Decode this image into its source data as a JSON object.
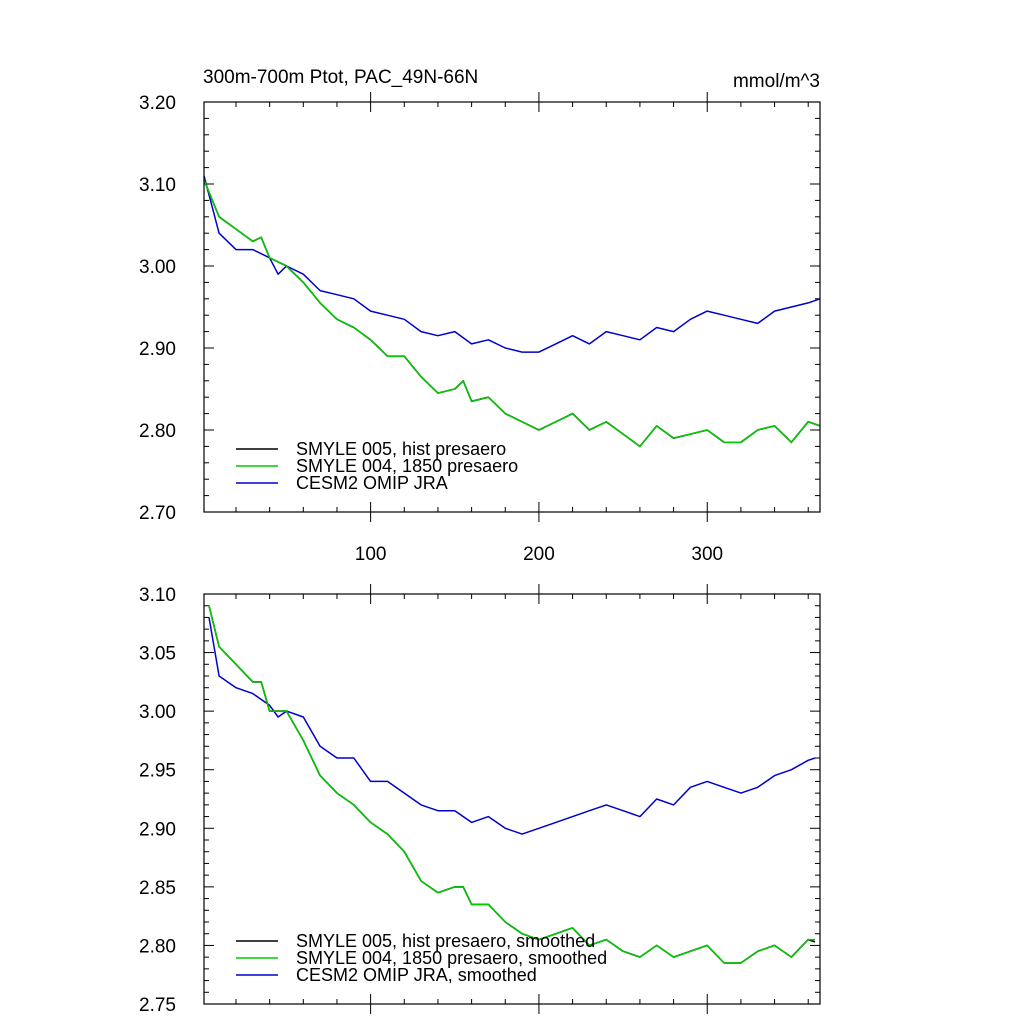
{
  "colors": {
    "hist": "#000000",
    "y1850": "#00cc00",
    "omip": "#0000cc"
  },
  "chart_data": [
    {
      "type": "line",
      "title": "300m-700m Ptot, PAC_49N-66N",
      "units": "mmol/m^3",
      "xlim": [
        1,
        367
      ],
      "ylim": [
        2.7,
        3.2
      ],
      "x_ticks": [
        100,
        200,
        300
      ],
      "y_ticks": [
        "2.70",
        "2.80",
        "2.90",
        "3.00",
        "3.10",
        "3.20"
      ],
      "legend": "bottom-left",
      "series": [
        {
          "name": "SMYLE 005, hist presaero",
          "x": [
            1,
            10,
            20,
            30,
            35,
            40,
            50,
            60,
            70,
            80,
            90,
            100,
            110,
            120,
            130,
            140,
            150,
            155,
            160,
            170,
            180,
            190,
            200,
            210,
            220,
            230,
            240,
            250,
            260,
            270,
            280,
            290,
            300,
            310,
            320,
            330,
            340,
            350,
            360,
            367
          ],
          "values": [
            3.105,
            3.06,
            3.045,
            3.03,
            3.035,
            3.01,
            3.0,
            2.98,
            2.955,
            2.935,
            2.925,
            2.91,
            2.89,
            2.89,
            2.865,
            2.845,
            2.85,
            2.86,
            2.835,
            2.84,
            2.82,
            2.81,
            2.8,
            2.81,
            2.82,
            2.8,
            2.81,
            2.795,
            2.78,
            2.805,
            2.79,
            2.795,
            2.8,
            2.785,
            2.785,
            2.8,
            2.805,
            2.785,
            2.81,
            2.805
          ]
        },
        {
          "name": "SMYLE 004, 1850 presaero",
          "x": [
            1,
            10,
            20,
            30,
            35,
            40,
            50,
            60,
            70,
            80,
            90,
            100,
            110,
            120,
            130,
            140,
            150,
            155,
            160,
            170,
            180,
            190,
            200,
            210,
            220,
            230,
            240,
            250,
            260,
            270,
            280,
            290,
            300,
            310,
            320,
            330,
            340,
            350,
            360,
            367
          ],
          "values": [
            3.105,
            3.06,
            3.045,
            3.03,
            3.035,
            3.01,
            3.0,
            2.98,
            2.955,
            2.935,
            2.925,
            2.91,
            2.89,
            2.89,
            2.865,
            2.845,
            2.85,
            2.86,
            2.835,
            2.84,
            2.82,
            2.81,
            2.8,
            2.81,
            2.82,
            2.8,
            2.81,
            2.795,
            2.78,
            2.805,
            2.79,
            2.795,
            2.8,
            2.785,
            2.785,
            2.8,
            2.805,
            2.785,
            2.81,
            2.805
          ]
        },
        {
          "name": "CESM2 OMIP JRA",
          "x": [
            1,
            10,
            20,
            30,
            40,
            45,
            50,
            60,
            70,
            80,
            90,
            100,
            110,
            120,
            130,
            140,
            150,
            160,
            170,
            180,
            190,
            200,
            210,
            220,
            230,
            240,
            250,
            260,
            270,
            280,
            290,
            300,
            310,
            320,
            330,
            340,
            350,
            360,
            367
          ],
          "values": [
            3.11,
            3.04,
            3.02,
            3.02,
            3.01,
            2.99,
            3.0,
            2.99,
            2.97,
            2.965,
            2.96,
            2.945,
            2.94,
            2.935,
            2.92,
            2.915,
            2.92,
            2.905,
            2.91,
            2.9,
            2.895,
            2.895,
            2.905,
            2.915,
            2.905,
            2.92,
            2.915,
            2.91,
            2.925,
            2.92,
            2.935,
            2.945,
            2.94,
            2.935,
            2.93,
            2.945,
            2.95,
            2.955,
            2.96
          ]
        }
      ]
    },
    {
      "type": "line",
      "title": "",
      "xlim": [
        1,
        367
      ],
      "ylim": [
        2.75,
        3.1
      ],
      "y_ticks": [
        "2.75",
        "2.80",
        "2.85",
        "2.90",
        "2.95",
        "3.00",
        "3.05",
        "3.10"
      ],
      "legend": "bottom-left",
      "series": [
        {
          "name": "SMYLE 005, hist presaero, smoothed",
          "x": [
            4,
            10,
            20,
            30,
            35,
            40,
            50,
            60,
            70,
            80,
            90,
            100,
            110,
            120,
            130,
            140,
            150,
            155,
            160,
            170,
            180,
            190,
            200,
            210,
            220,
            230,
            240,
            250,
            260,
            270,
            280,
            290,
            300,
            310,
            320,
            330,
            340,
            350,
            360,
            364
          ],
          "values": [
            3.09,
            3.055,
            3.04,
            3.025,
            3.025,
            3.0,
            3.0,
            2.975,
            2.945,
            2.93,
            2.92,
            2.905,
            2.895,
            2.88,
            2.855,
            2.845,
            2.85,
            2.85,
            2.835,
            2.835,
            2.82,
            2.81,
            2.805,
            2.81,
            2.815,
            2.8,
            2.805,
            2.795,
            2.79,
            2.8,
            2.79,
            2.795,
            2.8,
            2.785,
            2.785,
            2.795,
            2.8,
            2.79,
            2.805,
            2.803
          ]
        },
        {
          "name": "SMYLE 004, 1850 presaero, smoothed",
          "x": [
            4,
            10,
            20,
            30,
            35,
            40,
            50,
            60,
            70,
            80,
            90,
            100,
            110,
            120,
            130,
            140,
            150,
            155,
            160,
            170,
            180,
            190,
            200,
            210,
            220,
            230,
            240,
            250,
            260,
            270,
            280,
            290,
            300,
            310,
            320,
            330,
            340,
            350,
            360,
            364
          ],
          "values": [
            3.09,
            3.055,
            3.04,
            3.025,
            3.025,
            3.0,
            3.0,
            2.975,
            2.945,
            2.93,
            2.92,
            2.905,
            2.895,
            2.88,
            2.855,
            2.845,
            2.85,
            2.85,
            2.835,
            2.835,
            2.82,
            2.81,
            2.805,
            2.81,
            2.815,
            2.8,
            2.805,
            2.795,
            2.79,
            2.8,
            2.79,
            2.795,
            2.8,
            2.785,
            2.785,
            2.795,
            2.8,
            2.79,
            2.805,
            2.805
          ]
        },
        {
          "name": "CESM2 OMIP JRA, smoothed",
          "x": [
            4,
            10,
            20,
            30,
            40,
            45,
            50,
            60,
            70,
            80,
            90,
            100,
            110,
            120,
            130,
            140,
            150,
            160,
            170,
            180,
            190,
            200,
            210,
            220,
            230,
            240,
            250,
            260,
            270,
            280,
            290,
            300,
            310,
            320,
            330,
            340,
            350,
            360,
            364
          ],
          "values": [
            3.08,
            3.03,
            3.02,
            3.015,
            3.005,
            2.995,
            3.0,
            2.995,
            2.97,
            2.96,
            2.96,
            2.94,
            2.94,
            2.93,
            2.92,
            2.915,
            2.915,
            2.905,
            2.91,
            2.9,
            2.895,
            2.9,
            2.905,
            2.91,
            2.915,
            2.92,
            2.915,
            2.91,
            2.925,
            2.92,
            2.935,
            2.94,
            2.935,
            2.93,
            2.935,
            2.945,
            2.95,
            2.958,
            2.96
          ]
        }
      ]
    }
  ]
}
